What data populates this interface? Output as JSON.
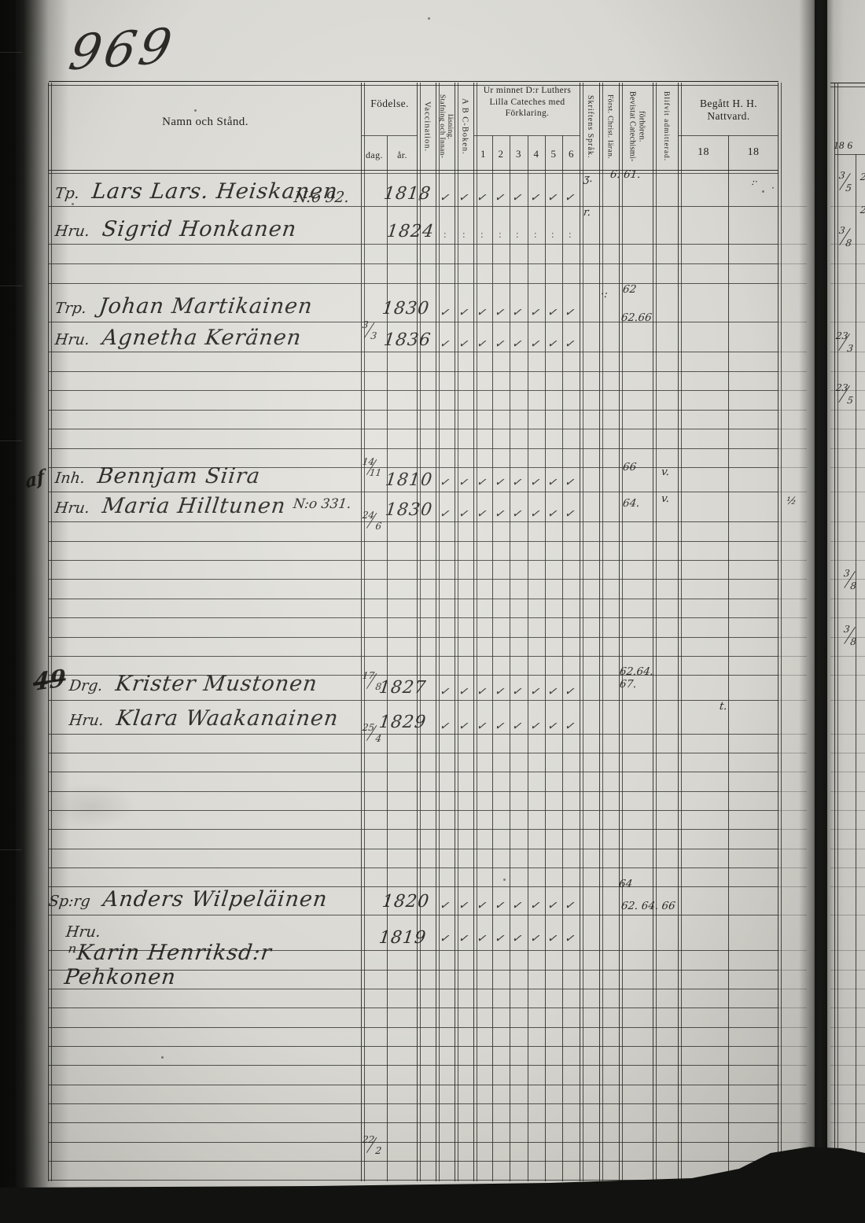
{
  "page_number": "969",
  "header": {
    "namn": "Namn och Stånd.",
    "fodelse": "Födelse.",
    "dag": "dag.",
    "ar": "år.",
    "vaccination": "Vaccination.",
    "stafning": "Stafning och Innan-läsning.",
    "abc": "A B C-Boken.",
    "cateches": "Ur minnet D:r Luthers Lilla Cateches med Förklaring.",
    "cateches_cells": [
      "1",
      "2",
      "3",
      "4",
      "5",
      "6"
    ],
    "skriftens": "Skriftens Språk.",
    "forst": "Först. Christ. läran.",
    "bevistat": "Bevistat Catechismi-förhören.",
    "blifvit": "Blifvit admitterad.",
    "nattvard": "Begått H. H. Nattvard.",
    "nattvard_cells": [
      "18",
      "18"
    ]
  },
  "rows": [
    {
      "margin": "",
      "prefix": "Tp.",
      "name": "Lars Lars. Heiskanen",
      "note": "",
      "dag": "3/3",
      "ar": "1818",
      "marks": "checks",
      "ann": [
        "ʒ.",
        "6. 61."
      ],
      "right": [
        ":·",
        "·"
      ]
    },
    {
      "margin": "",
      "prefix": "Hru.",
      "name": "Sigrid Honkanen",
      "note": "N:o 92.",
      "dag": "",
      "ar": "1824",
      "marks": "dots",
      "ann": [
        "r."
      ],
      "right": []
    },
    {
      "margin": "",
      "prefix": "Trp.",
      "name": "Johan Martikainen",
      "note": "",
      "dag": "14/11",
      "ar": "1830",
      "marks": "checks",
      "ann": [
        "·:",
        "62",
        "62.66"
      ],
      "right": []
    },
    {
      "margin": "",
      "prefix": "Hru.",
      "name": "Agnetha Keränen",
      "note": "",
      "dag": "24/6",
      "ar": "1836",
      "marks": "checks",
      "ann": [],
      "right": []
    },
    {
      "margin": "af",
      "prefix": "Inh.",
      "name": "Bennjam Siira",
      "note": "",
      "dag": "17/8",
      "ar": "1810",
      "marks": "checks",
      "ann": [
        "66",
        "v."
      ],
      "right": []
    },
    {
      "margin": "",
      "prefix": "Hru.",
      "name": "Maria Hilltunen",
      "note": "N:o 331.",
      "dag": "25/4",
      "ar": "1830",
      "marks": "checks",
      "ann": [
        "64.",
        "v."
      ],
      "right": []
    },
    {
      "margin": "49",
      "prefix": "Drg.",
      "name": "Krister Mustonen",
      "note": "",
      "dag": "",
      "ar": "1827",
      "marks": "checks",
      "ann": [
        "62.64.",
        "67.",
        "t."
      ],
      "right": []
    },
    {
      "margin": "",
      "prefix": "Hru.",
      "name": "Klara Waakanainen",
      "note": "",
      "dag": "",
      "ar": "1829",
      "marks": "checks",
      "ann": [],
      "right": []
    },
    {
      "margin": "",
      "prefix": "Sp:rg",
      "name": "Anders Wilpeläinen",
      "note": "",
      "dag": "22/2",
      "ar": "1820",
      "marks": "checks",
      "ann": [
        "64",
        "62. 64. 66"
      ],
      "right": []
    },
    {
      "margin": "",
      "prefix": "Hru.",
      "name": "ⁿKarin Henriksd:r Pehkonen",
      "note": "",
      "dag": "",
      "ar": "1819",
      "marks": "checks",
      "ann": [],
      "right": []
    }
  ],
  "neighbor_page": {
    "year_header": "18 6",
    "entries": [
      "3/5",
      "3/8",
      "23/3",
      "23/5",
      "3/8",
      "3/8"
    ],
    "partials": [
      "2",
      "2"
    ]
  },
  "stray_marks": [
    "½",
    "ʃ"
  ]
}
